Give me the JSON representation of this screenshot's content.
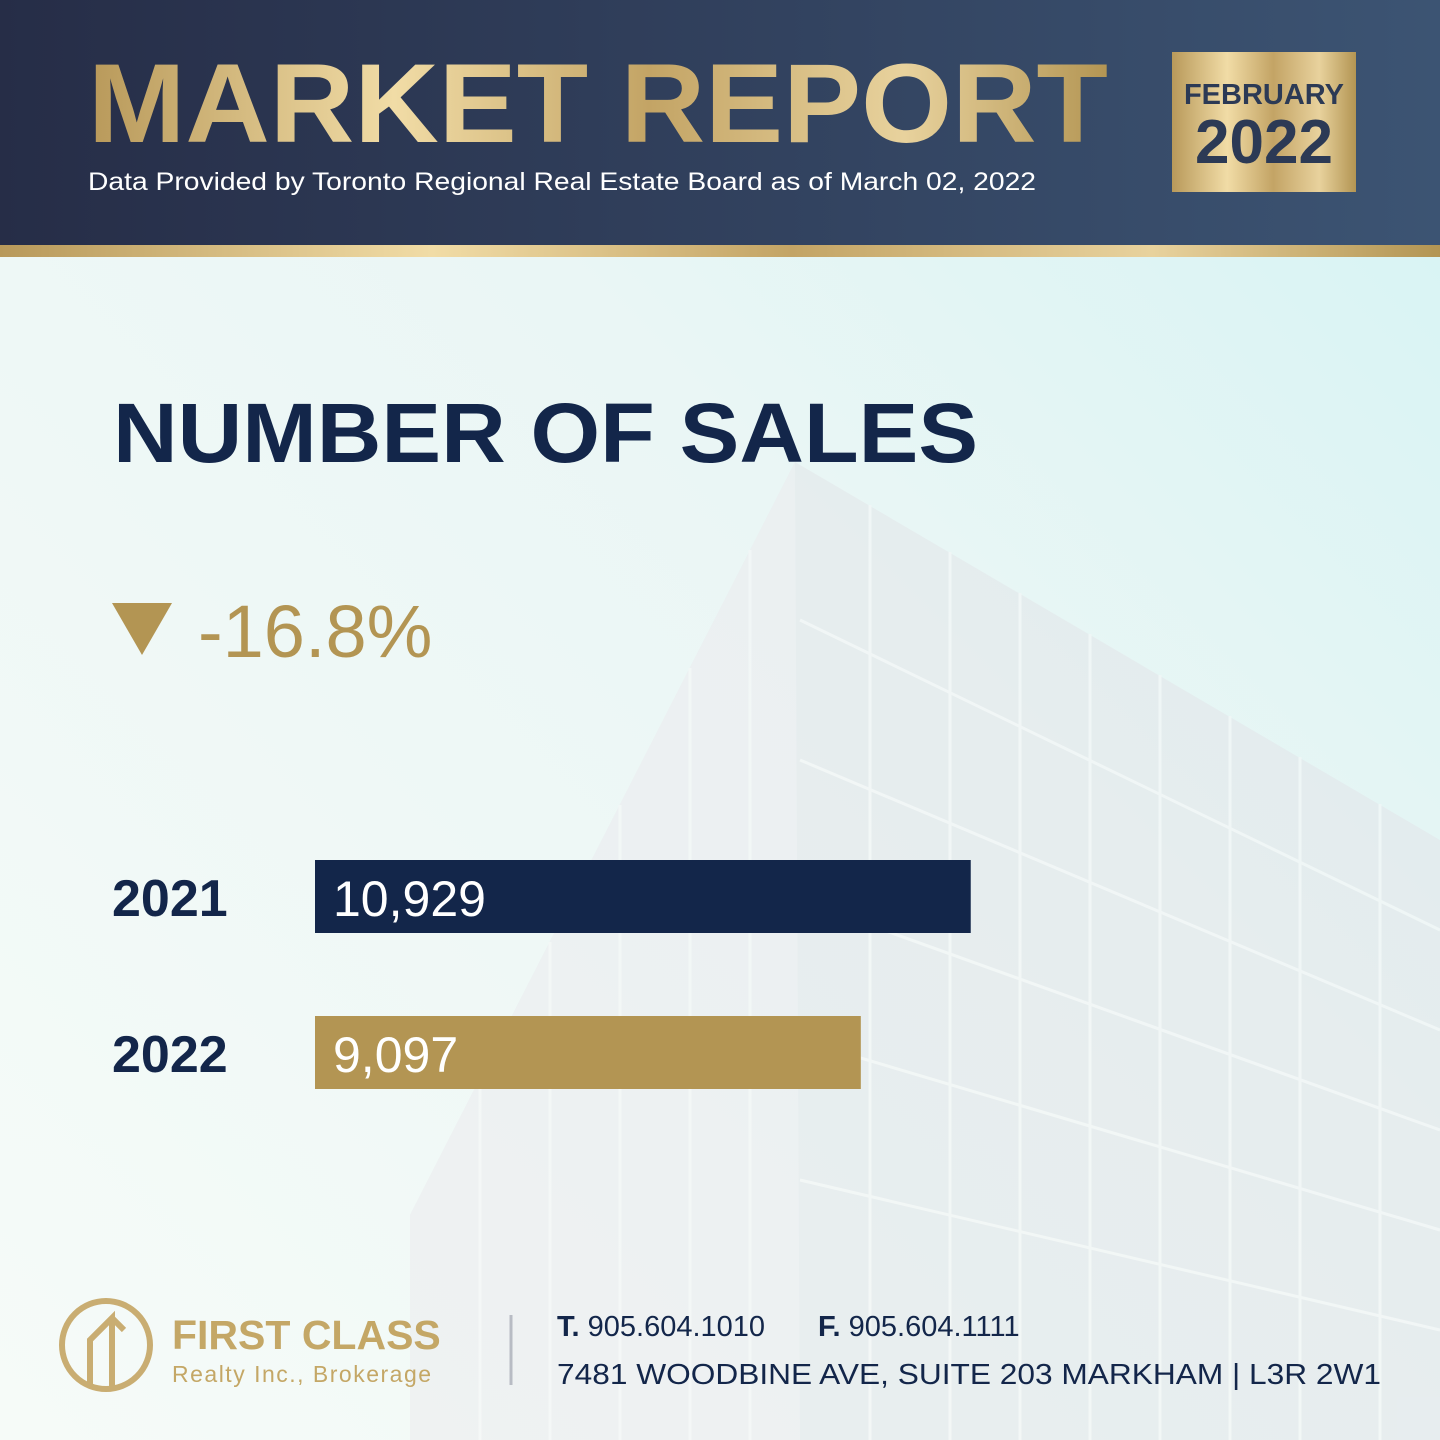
{
  "header": {
    "title": "MARKET REPORT",
    "subtitle": "Data Provided by Toronto Regional Real Estate Board as of March 02, 2022",
    "month": "FEBRUARY",
    "year": "2022"
  },
  "chart_data": {
    "type": "bar",
    "orientation": "horizontal",
    "title": "NUMBER OF SALES",
    "annotation": "-16.8%",
    "categories": [
      "2021",
      "2022"
    ],
    "values": [
      10929,
      9097
    ],
    "value_labels": [
      "10,929",
      "9,097"
    ],
    "colors": [
      "#13264a",
      "#b39553"
    ],
    "xlim": [
      0,
      14000
    ]
  },
  "footer": {
    "brand": "FIRST CLASS",
    "tagline": "Realty Inc., Brokerage",
    "phone_label": "T.",
    "phone": "905.604.1010",
    "fax_label": "F.",
    "fax": "905.604.1111",
    "address": "7481 WOODBINE AVE, SUITE 203 MARKHAM | L3R 2W1"
  }
}
